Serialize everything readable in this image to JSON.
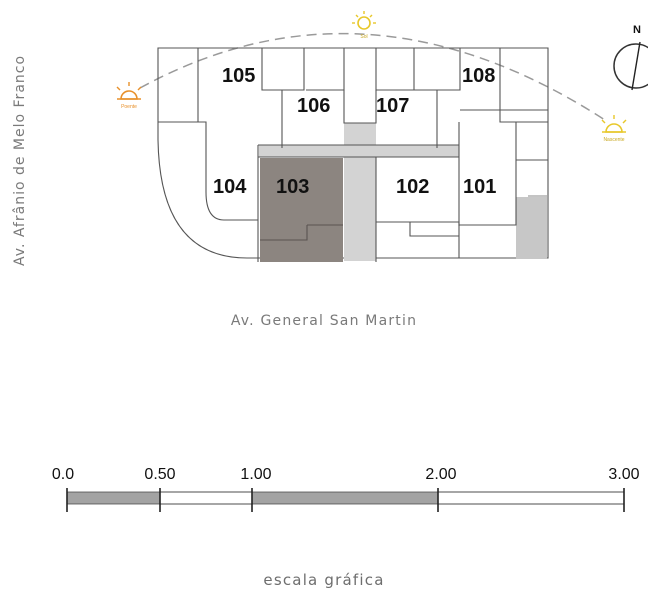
{
  "streets": {
    "left": "Av. Afrânio de Melo Franco",
    "bottom": "Av. General San Martin"
  },
  "compass": {
    "label": "N"
  },
  "sun": {
    "east_label": "Poente",
    "noon_label": "Sol",
    "west_label": "Nascente",
    "east_color": "#e8902a",
    "noon_color": "#e8c82a",
    "west_color": "#e8c82a"
  },
  "units": [
    {
      "id": "105",
      "label": "105",
      "highlighted": false
    },
    {
      "id": "106",
      "label": "106",
      "highlighted": false
    },
    {
      "id": "107",
      "label": "107",
      "highlighted": false
    },
    {
      "id": "108",
      "label": "108",
      "highlighted": false
    },
    {
      "id": "104",
      "label": "104",
      "highlighted": false
    },
    {
      "id": "103",
      "label": "103",
      "highlighted": true
    },
    {
      "id": "102",
      "label": "102",
      "highlighted": false
    },
    {
      "id": "101",
      "label": "101",
      "highlighted": false
    }
  ],
  "colors": {
    "highlight": "#8c8580",
    "core": "#d3d3d3",
    "scale_fill": "#a3a3a3"
  },
  "scale": {
    "caption": "escala gráfica",
    "ticks": [
      "0.0",
      "0.50",
      "1.00",
      "2.00",
      "3.00"
    ]
  }
}
